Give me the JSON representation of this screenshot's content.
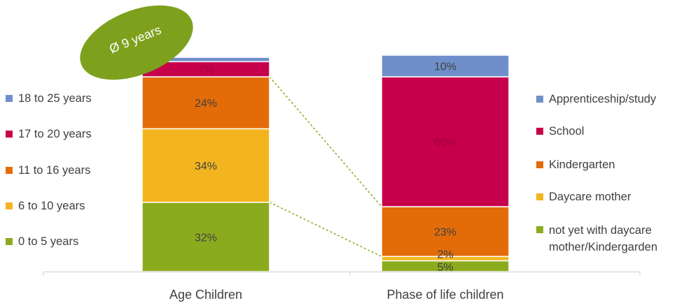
{
  "colors": {
    "years_0_5": "#8bab1e",
    "years_6_10": "#f3b51f",
    "years_11_16": "#e36c09",
    "years_17_20": "#c7004b",
    "years_18_25": "#6f8fca",
    "not_yet": "#8bab1e",
    "daycare_mother": "#f3b51f",
    "kindergarten": "#e36c09",
    "school": "#c7004b",
    "apprenticeship": "#6f8fca",
    "connector": "#8bab1e"
  },
  "badge": {
    "text": "Ø 9 years"
  },
  "legend_left": [
    {
      "label": "18 to 25 years",
      "color": "#6f8fca"
    },
    {
      "label": "17 to 20 years",
      "color": "#c7004b"
    },
    {
      "label": "11 to 16 years",
      "color": "#e36c09"
    },
    {
      "label": "6 to 10 years",
      "color": "#f3b51f"
    },
    {
      "label": "0 to 5 years",
      "color": "#8bab1e"
    }
  ],
  "legend_right": [
    {
      "label": "Apprenticeship/study",
      "color": "#6f8fca"
    },
    {
      "label": "School",
      "color": "#c7004b"
    },
    {
      "label": "Kindergarten",
      "color": "#e36c09"
    },
    {
      "label": "Daycare mother",
      "color": "#f3b51f"
    },
    {
      "label": "not yet with daycare\nmother/Kindergarden",
      "color": "#8bab1e"
    }
  ],
  "chart_data": {
    "type": "bar",
    "stacked": true,
    "categories": [
      "Age Children",
      "Phase of life children"
    ],
    "series": [
      {
        "category": "Age Children",
        "name": "0 to 5 years",
        "value": 32,
        "label": "32%",
        "color": "#8bab1e",
        "label_color": "#404040"
      },
      {
        "category": "Age Children",
        "name": "6 to 10 years",
        "value": 34,
        "label": "34%",
        "color": "#f3b51f",
        "label_color": "#404040"
      },
      {
        "category": "Age Children",
        "name": "11 to 16 years",
        "value": 24,
        "label": "24%",
        "color": "#e36c09",
        "label_color": "#404040"
      },
      {
        "category": "Age Children",
        "name": "17 to 20 years",
        "value": 7,
        "label": "7%",
        "color": "#c7004b",
        "label_color": "#a00040"
      },
      {
        "category": "Age Children",
        "name": "18 to 25 years",
        "value": 2,
        "label": "",
        "color": "#6f8fca",
        "label_color": "#404040"
      },
      {
        "category": "Phase of life children",
        "name": "not yet with daycare mother/Kindergarden",
        "value": 5,
        "label": "5%",
        "color": "#8bab1e",
        "label_color": "#404040"
      },
      {
        "category": "Phase of life children",
        "name": "Daycare mother",
        "value": 2,
        "label": "2%",
        "color": "#f3b51f",
        "label_color": "#404040"
      },
      {
        "category": "Phase of life children",
        "name": "Kindergarten",
        "value": 23,
        "label": "23%",
        "color": "#e36c09",
        "label_color": "#404040"
      },
      {
        "category": "Phase of life children",
        "name": "School",
        "value": 60,
        "label": "60%",
        "color": "#c7004b",
        "label_color": "#a00040"
      },
      {
        "category": "Phase of life children",
        "name": "Apprenticeship/study",
        "value": 10,
        "label": "10%",
        "color": "#6f8fca",
        "label_color": "#404040"
      }
    ],
    "ylim": [
      0,
      100
    ],
    "grid": false,
    "legend_placement": "left and right"
  }
}
